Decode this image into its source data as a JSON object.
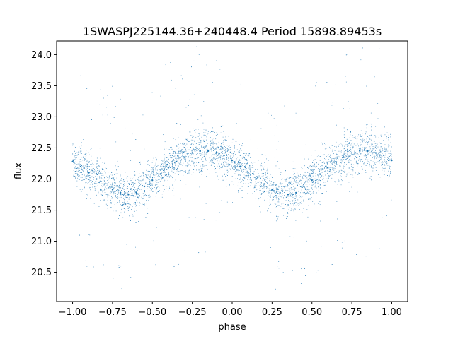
{
  "chart_data": {
    "type": "scatter",
    "title": "1SWASPJ225144.36+240448.4 Period 15898.89453s",
    "xlabel": "phase",
    "ylabel": "flux",
    "xlim": [
      -1.1,
      1.1
    ],
    "ylim": [
      20.03,
      24.22
    ],
    "x_ticks": [
      -1.0,
      -0.75,
      -0.5,
      -0.25,
      0.0,
      0.25,
      0.5,
      0.75,
      1.0
    ],
    "x_tick_labels": [
      "−1.00",
      "−0.75",
      "−0.50",
      "−0.25",
      "0.00",
      "0.25",
      "0.50",
      "0.75",
      "1.00"
    ],
    "y_ticks": [
      20.5,
      21.0,
      21.5,
      22.0,
      22.5,
      23.0,
      23.5,
      24.0
    ],
    "y_tick_labels": [
      "20.5",
      "21.0",
      "21.5",
      "22.0",
      "22.5",
      "23.0",
      "23.5",
      "24.0"
    ],
    "grid": false,
    "legend": "none",
    "marker_color": "#1f77b4",
    "marker_size_note": "tiny dots",
    "series": [
      {
        "x": [
          -1.0,
          -0.95,
          -0.9,
          -0.85,
          -0.8,
          -0.75,
          -0.7,
          -0.65,
          -0.6,
          -0.55,
          -0.5,
          -0.45,
          -0.4,
          -0.35,
          -0.3,
          -0.25,
          -0.2,
          -0.15,
          -0.1,
          -0.05,
          0.0,
          0.05,
          0.1,
          0.15,
          0.2,
          0.25,
          0.3,
          0.35,
          0.4,
          0.45,
          0.5,
          0.55,
          0.6,
          0.65,
          0.7,
          0.75,
          0.8,
          0.85,
          0.9,
          0.95,
          1.0
        ],
        "y": [
          22.28,
          22.2,
          22.1,
          22.0,
          21.92,
          21.83,
          21.78,
          21.75,
          21.78,
          21.88,
          21.98,
          22.08,
          22.18,
          22.28,
          22.35,
          22.42,
          22.45,
          22.45,
          22.42,
          22.38,
          22.3,
          22.2,
          22.1,
          22.0,
          21.92,
          21.83,
          21.78,
          21.75,
          21.78,
          21.88,
          21.98,
          22.08,
          22.18,
          22.28,
          22.35,
          22.42,
          22.45,
          22.45,
          22.42,
          22.38,
          22.3
        ]
      }
    ]
  }
}
